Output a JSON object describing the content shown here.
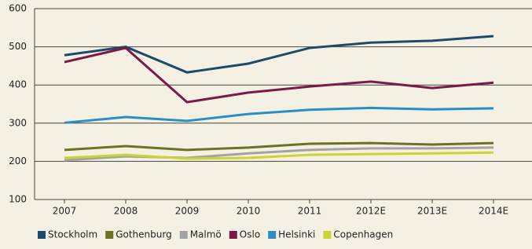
{
  "chart_data": {
    "type": "line",
    "categories": [
      "2007",
      "2008",
      "2009",
      "2010",
      "2011",
      "2012E",
      "2013E",
      "2014E"
    ],
    "series": [
      {
        "name": "Stockholm",
        "color": "#1d4a6b",
        "values": [
          478,
          500,
          433,
          456,
          497,
          511,
          516,
          528
        ]
      },
      {
        "name": "Gothenburg",
        "color": "#6b7322",
        "values": [
          230,
          240,
          230,
          236,
          246,
          248,
          244,
          248
        ]
      },
      {
        "name": "Malmö",
        "color": "#a3a3a3",
        "values": [
          203,
          213,
          209,
          221,
          230,
          234,
          234,
          236
        ]
      },
      {
        "name": "Oslo",
        "color": "#7b1a46",
        "values": [
          460,
          497,
          355,
          380,
          396,
          409,
          392,
          406
        ]
      },
      {
        "name": "Helsinki",
        "color": "#2b8ec6",
        "values": [
          301,
          316,
          306,
          324,
          335,
          340,
          336,
          339
        ]
      },
      {
        "name": "Copenhagen",
        "color": "#c9d631",
        "values": [
          209,
          217,
          207,
          209,
          217,
          219,
          221,
          223
        ]
      }
    ],
    "ylim": [
      100,
      600
    ],
    "yticks": [
      100,
      200,
      300,
      400,
      500,
      600
    ],
    "grid": true,
    "legend": "bottom"
  }
}
